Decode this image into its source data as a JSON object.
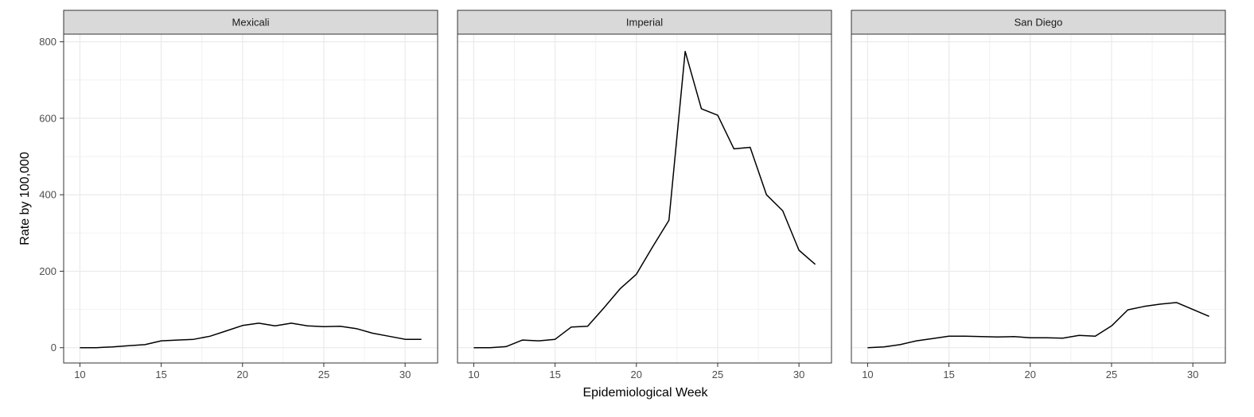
{
  "chart_data": {
    "type": "line",
    "layout": "facet_wrap",
    "xlabel": "Epidemiological Week",
    "ylabel": "Rate by 100,000",
    "xlim": [
      9,
      32
    ],
    "ylim": [
      -40,
      820
    ],
    "x_ticks": [
      10,
      15,
      20,
      25,
      30
    ],
    "y_ticks": [
      0,
      200,
      400,
      600,
      800
    ],
    "grid": true,
    "line_color": "#000000",
    "panels": [
      {
        "name": "Mexicali",
        "x": [
          10,
          11,
          12,
          13,
          14,
          15,
          16,
          17,
          18,
          19,
          20,
          21,
          22,
          23,
          24,
          25,
          26,
          27,
          28,
          29,
          30,
          31
        ],
        "y": [
          0,
          0,
          2,
          5,
          8,
          18,
          20,
          22,
          30,
          44,
          58,
          64,
          57,
          64,
          57,
          55,
          56,
          50,
          38,
          30,
          22,
          22
        ]
      },
      {
        "name": "Imperial",
        "x": [
          10,
          11,
          12,
          13,
          14,
          15,
          16,
          17,
          18,
          19,
          20,
          21,
          22,
          23,
          24,
          25,
          26,
          27,
          28,
          29,
          30,
          31
        ],
        "y": [
          0,
          0,
          3,
          20,
          18,
          22,
          54,
          56,
          104,
          154,
          192,
          264,
          333,
          775,
          625,
          608,
          520,
          524,
          400,
          358,
          255,
          218
        ]
      },
      {
        "name": "San Diego",
        "x": [
          10,
          11,
          12,
          13,
          14,
          15,
          16,
          17,
          18,
          19,
          20,
          21,
          22,
          23,
          24,
          25,
          26,
          27,
          28,
          29,
          30,
          31
        ],
        "y": [
          0,
          2,
          8,
          18,
          24,
          30,
          30,
          29,
          28,
          29,
          26,
          26,
          25,
          32,
          30,
          57,
          99,
          108,
          114,
          118,
          100,
          82
        ]
      }
    ]
  }
}
